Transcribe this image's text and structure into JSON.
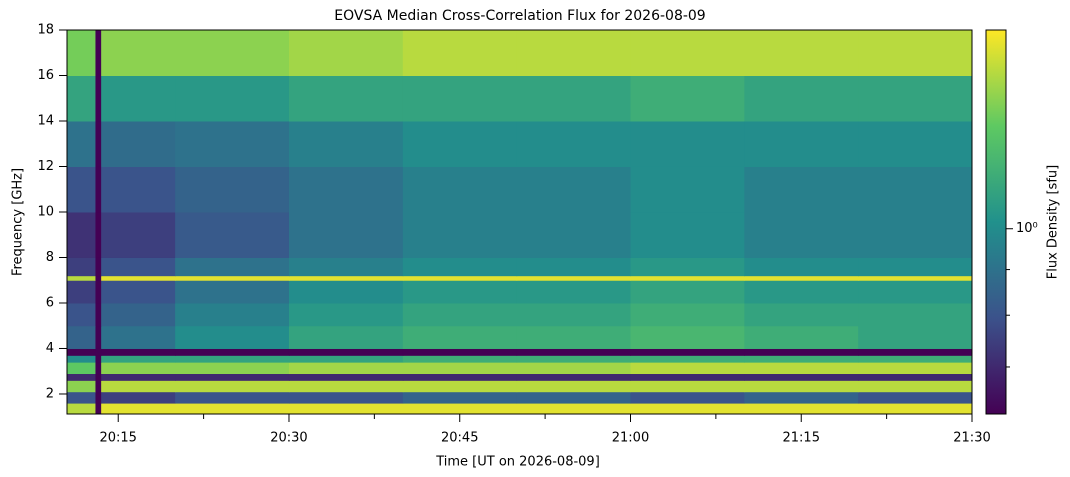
{
  "chart_data": {
    "type": "heatmap",
    "title": "EOVSA Median Cross-Correlation Flux for 2026-08-09",
    "xlabel": "Time [UT on 2026-08-09]",
    "ylabel": "Frequency [GHz]",
    "xlim": [
      "20:10:30",
      "21:30"
    ],
    "ylim": [
      1.12,
      18
    ],
    "xticks": [
      "20:15",
      "20:30",
      "20:45",
      "21:00",
      "21:15",
      "21:30"
    ],
    "yticks": [
      2,
      4,
      6,
      8,
      10,
      12,
      14,
      16,
      18
    ],
    "x_edges": [
      "20:10:30",
      "20:13",
      "20:13:30",
      "20:20",
      "20:30",
      "20:40",
      "20:50",
      "21:00",
      "21:10",
      "21:20",
      "21:30"
    ],
    "y_edges": [
      1.12,
      1.6,
      2.1,
      2.6,
      2.9,
      3.4,
      3.7,
      4.0,
      5,
      6,
      7,
      7.2,
      8,
      10,
      12,
      14,
      16,
      18
    ],
    "z": [
      [
        1.5,
        0.62,
        1.6,
        1.6,
        1.6,
        1.6,
        1.6,
        1.6,
        1.6,
        1.6
      ],
      [
        0.8,
        0.62,
        0.75,
        0.8,
        0.8,
        0.85,
        0.85,
        0.8,
        0.85,
        0.8
      ],
      [
        1.4,
        0.62,
        1.5,
        1.5,
        1.5,
        1.5,
        1.5,
        1.5,
        1.5,
        1.5
      ],
      [
        0.7,
        0.62,
        0.7,
        0.7,
        0.7,
        0.7,
        0.7,
        0.7,
        0.7,
        0.7
      ],
      [
        1.3,
        0.62,
        1.4,
        1.4,
        1.45,
        1.45,
        1.45,
        1.5,
        1.5,
        1.5
      ],
      [
        1.0,
        0.62,
        1.1,
        1.1,
        1.1,
        1.15,
        1.15,
        1.15,
        1.15,
        1.15
      ],
      [
        0.62,
        0.62,
        0.62,
        0.62,
        0.62,
        0.62,
        0.62,
        0.62,
        0.62,
        0.62
      ],
      [
        0.85,
        0.62,
        0.9,
        1.0,
        1.1,
        1.15,
        1.15,
        1.2,
        1.15,
        1.1
      ],
      [
        0.8,
        0.62,
        0.85,
        0.95,
        1.05,
        1.1,
        1.1,
        1.15,
        1.1,
        1.1
      ],
      [
        0.75,
        0.62,
        0.8,
        0.9,
        1.0,
        1.05,
        1.05,
        1.1,
        1.05,
        1.05
      ],
      [
        1.5,
        0.62,
        1.6,
        1.6,
        1.6,
        1.6,
        1.6,
        1.6,
        1.6,
        1.6
      ],
      [
        0.75,
        0.62,
        0.8,
        0.9,
        0.95,
        1.0,
        1.0,
        1.05,
        1.0,
        1.0
      ],
      [
        0.72,
        0.62,
        0.75,
        0.82,
        0.9,
        0.95,
        0.95,
        1.0,
        0.95,
        0.95
      ],
      [
        0.8,
        0.62,
        0.8,
        0.85,
        0.9,
        0.95,
        0.95,
        1.0,
        0.95,
        0.95
      ],
      [
        0.9,
        0.62,
        0.88,
        0.9,
        0.95,
        1.0,
        1.0,
        1.0,
        1.0,
        1.0
      ],
      [
        1.1,
        0.62,
        1.05,
        1.05,
        1.1,
        1.1,
        1.1,
        1.15,
        1.1,
        1.1
      ],
      [
        1.35,
        0.62,
        1.4,
        1.4,
        1.45,
        1.5,
        1.5,
        1.5,
        1.5,
        1.5
      ]
    ],
    "colorbar": {
      "label": "Flux Density [sfu]",
      "scale": "log",
      "colormap": "viridis",
      "lim": [
        0.62,
        1.67
      ],
      "ticks": [
        {
          "value": 1,
          "label": "10⁰"
        }
      ],
      "minor_ticks": [
        0.7,
        0.8,
        0.9
      ]
    }
  }
}
